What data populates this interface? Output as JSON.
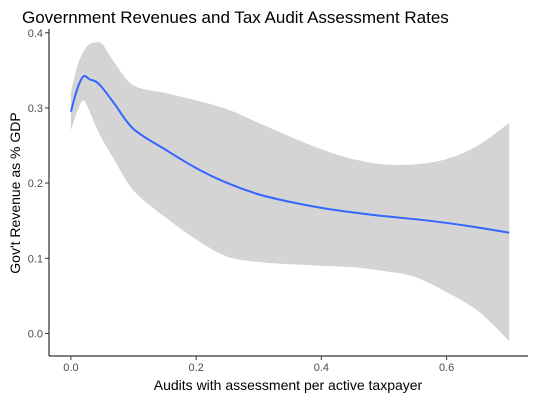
{
  "chart_data": {
    "type": "line",
    "title": "Government Revenues and Tax Audit Assessment Rates",
    "xlabel": "Audits with assessment per active taxpayer",
    "ylabel": "Gov't Revenue as % GDP",
    "xlim": [
      -0.035,
      0.73
    ],
    "ylim": [
      -0.03,
      0.405
    ],
    "x_ticks": [
      0.0,
      0.2,
      0.4,
      0.6
    ],
    "x_tick_labels": [
      "0.0",
      "0.2",
      "0.4",
      "0.6"
    ],
    "y_ticks": [
      0.0,
      0.1,
      0.2,
      0.3,
      0.4
    ],
    "y_tick_labels": [
      "0.0",
      "0.1",
      "0.2",
      "0.3",
      "0.4"
    ],
    "grid": false,
    "legend": "none",
    "colors": {
      "line": "#3366ff",
      "band": "#d4d4d4"
    },
    "series": [
      {
        "x": [
          0.0,
          0.01,
          0.02,
          0.03,
          0.04,
          0.05,
          0.07,
          0.1,
          0.15,
          0.2,
          0.25,
          0.3,
          0.35,
          0.4,
          0.45,
          0.5,
          0.55,
          0.6,
          0.65,
          0.7
        ],
        "y": [
          0.295,
          0.325,
          0.342,
          0.338,
          0.335,
          0.327,
          0.305,
          0.272,
          0.245,
          0.22,
          0.2,
          0.185,
          0.175,
          0.167,
          0.161,
          0.156,
          0.152,
          0.147,
          0.141,
          0.134
        ],
        "ci_lower": [
          0.27,
          0.295,
          0.31,
          0.295,
          0.275,
          0.258,
          0.23,
          0.19,
          0.155,
          0.125,
          0.102,
          0.095,
          0.092,
          0.09,
          0.088,
          0.083,
          0.075,
          0.055,
          0.03,
          -0.01
        ],
        "ci_upper": [
          0.32,
          0.355,
          0.375,
          0.385,
          0.387,
          0.385,
          0.36,
          0.33,
          0.32,
          0.31,
          0.298,
          0.28,
          0.262,
          0.245,
          0.232,
          0.225,
          0.225,
          0.232,
          0.25,
          0.28
        ]
      }
    ]
  }
}
